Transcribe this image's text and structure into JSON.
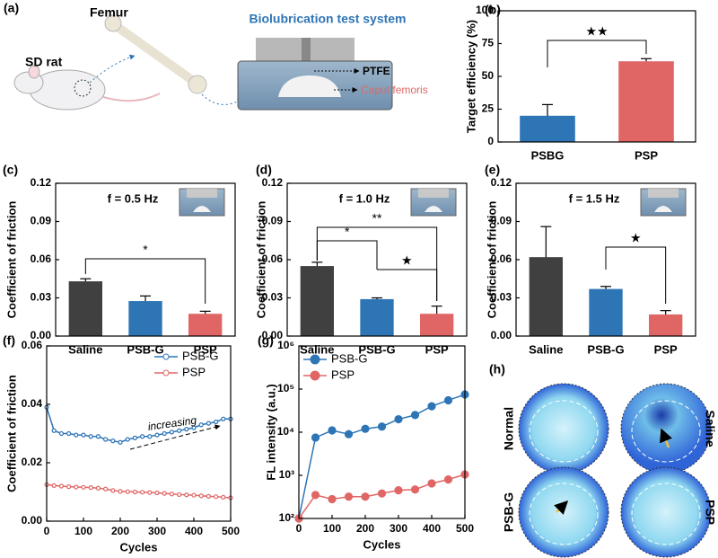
{
  "panel_a": {
    "label": "(a)",
    "femur": "Femur",
    "rat": "SD rat",
    "system": "Biolubrication test system",
    "ptfe": "PTFE",
    "caput": "Caput femoris"
  },
  "panel_h": {
    "label": "(h)",
    "images": [
      "Normal",
      "Saline",
      "PSB-G",
      "PSP"
    ]
  },
  "chart_data": [
    {
      "type": "bar",
      "panel": "(b)",
      "ylabel": "Target efficiency (%)",
      "categories": [
        "PSBG",
        "PSP"
      ],
      "values": [
        20,
        61.5
      ],
      "errors": [
        8.5,
        2
      ],
      "colors": [
        "#2e75b6",
        "#e06666"
      ],
      "ylim": [
        0,
        100
      ],
      "yticks": [
        0,
        25,
        50,
        75,
        100
      ],
      "significance": [
        "★★"
      ]
    },
    {
      "type": "bar",
      "panel": "(c)",
      "ylabel": "Coefficient of friction",
      "annotation": "f = 0.5 Hz",
      "categories": [
        "Saline",
        "PSB-G",
        "PSP"
      ],
      "values": [
        0.043,
        0.0275,
        0.0175
      ],
      "errors": [
        0.002,
        0.004,
        0.002
      ],
      "colors": [
        "#404040",
        "#2e75b6",
        "#e06666"
      ],
      "ylim": [
        0,
        0.12
      ],
      "yticks": [
        {
          "value": 0,
          "label": "0.00"
        },
        0.03,
        0.06,
        0.09,
        0.12
      ],
      "significance": [
        "*"
      ]
    },
    {
      "type": "bar",
      "panel": "(d)",
      "ylabel": "Coefficient of friction",
      "annotation": "f = 1.0 Hz",
      "categories": [
        "Saline",
        "PSB-G",
        "PSP"
      ],
      "values": [
        0.055,
        0.029,
        0.0175
      ],
      "errors": [
        0.003,
        0.001,
        0.006
      ],
      "colors": [
        "#404040",
        "#2e75b6",
        "#e06666"
      ],
      "ylim": [
        0,
        0.12
      ],
      "yticks": [
        {
          "value": 0,
          "label": "0.00"
        },
        0.03,
        0.06,
        0.09,
        0.12
      ],
      "significance": [
        "*",
        "**",
        "★"
      ]
    },
    {
      "type": "bar",
      "panel": "(e)",
      "ylabel": "Coefficient of friction",
      "annotation": "f = 1.5 Hz",
      "categories": [
        "Saline",
        "PSB-G",
        "PSP"
      ],
      "values": [
        0.062,
        0.037,
        0.017
      ],
      "errors": [
        0.024,
        0.002,
        0.003
      ],
      "colors": [
        "#404040",
        "#2e75b6",
        "#e06666"
      ],
      "ylim": [
        0,
        0.12
      ],
      "yticks": [
        {
          "value": 0,
          "label": "0.00"
        },
        0.03,
        0.06,
        0.09,
        0.12
      ],
      "significance": [
        "★"
      ]
    },
    {
      "type": "line",
      "panel": "(f)",
      "ylabel": "Coefficient of friction",
      "xlabel": "Cycles",
      "annotation": "increasing",
      "x": [
        0,
        20,
        40,
        60,
        80,
        100,
        120,
        140,
        160,
        180,
        200,
        220,
        240,
        260,
        280,
        300,
        320,
        340,
        360,
        380,
        400,
        420,
        440,
        460,
        480,
        500
      ],
      "series": [
        {
          "name": "PSB-G",
          "color": "#2e75b6",
          "values": [
            0.039,
            0.031,
            0.03,
            0.03,
            0.0295,
            0.0295,
            0.029,
            0.029,
            0.028,
            0.0275,
            0.027,
            0.028,
            0.0285,
            0.029,
            0.029,
            0.0295,
            0.03,
            0.0305,
            0.031,
            0.0315,
            0.032,
            0.033,
            0.0335,
            0.034,
            0.035,
            0.035
          ]
        },
        {
          "name": "PSP",
          "color": "#e06666",
          "values": [
            0.0125,
            0.0122,
            0.012,
            0.0118,
            0.0117,
            0.0116,
            0.0115,
            0.0113,
            0.011,
            0.0105,
            0.0102,
            0.0101,
            0.01,
            0.0099,
            0.0098,
            0.0097,
            0.0095,
            0.0093,
            0.0091,
            0.009,
            0.0089,
            0.0087,
            0.0085,
            0.0084,
            0.0082,
            0.008
          ]
        }
      ],
      "xlim": [
        0,
        500
      ],
      "xticks": [
        0,
        100,
        200,
        300,
        400,
        500
      ],
      "ylim": [
        0,
        0.06
      ],
      "yticks": [
        {
          "value": 0,
          "label": "0.00"
        },
        0.02,
        0.04,
        0.06
      ]
    },
    {
      "type": "line",
      "panel": "(g)",
      "ylabel": "FL intensity (a.u.)",
      "xlabel": "Cycles",
      "yscale": "log",
      "x": [
        0,
        50,
        100,
        150,
        200,
        250,
        300,
        350,
        400,
        450,
        500
      ],
      "series": [
        {
          "name": "PSB-G",
          "color": "#2e75b6",
          "values": [
            100,
            7500,
            11000,
            9000,
            12000,
            13500,
            20000,
            25000,
            40000,
            55000,
            75000
          ]
        },
        {
          "name": "PSP",
          "color": "#e06666",
          "values": [
            100,
            350,
            280,
            320,
            320,
            380,
            450,
            470,
            650,
            800,
            1050
          ]
        }
      ],
      "xlim": [
        0,
        500
      ],
      "xticks": [
        0,
        100,
        200,
        300,
        400,
        500
      ],
      "ylim": [
        100,
        1000000
      ],
      "yticks": [
        {
          "value": 100,
          "label": "10²"
        },
        {
          "value": 1000,
          "label": "10³"
        },
        {
          "value": 10000,
          "label": "10⁴"
        },
        {
          "value": 100000,
          "label": "10⁵"
        },
        {
          "value": 1000000,
          "label": "10⁶"
        }
      ]
    }
  ]
}
